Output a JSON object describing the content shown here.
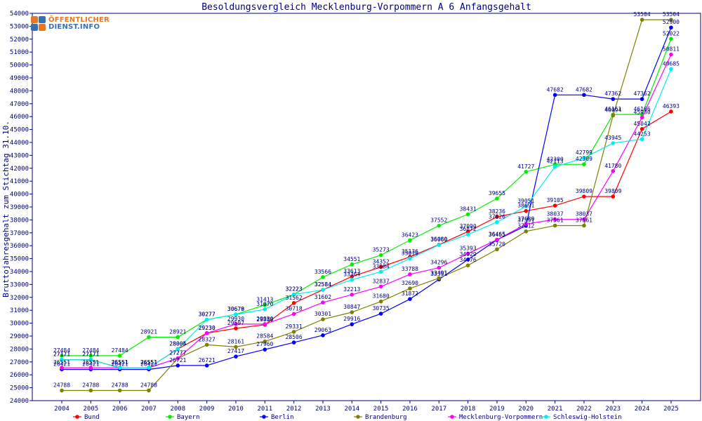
{
  "logo": {
    "line1": "ÖFFENTLICHER",
    "line2": "DIENST.INFO"
  },
  "chart_data": {
    "type": "line",
    "title": "Besoldungsvergleich Mecklenburg-Vorpommern A 6 Anfangsgehalt",
    "xlabel": "",
    "ylabel": "Bruttojahresgehalt zum Stichtag 31.10.",
    "ylim": [
      24000,
      54000
    ],
    "ytick_step": 1000,
    "grid": false,
    "legend_position": "bottom",
    "categories": [
      "2004",
      "2005",
      "2006",
      "2007",
      "2008",
      "2009",
      "2010",
      "2011",
      "2012",
      "2013",
      "2014",
      "2015",
      "2016",
      "2017",
      "2018",
      "2019",
      "2020",
      "2021",
      "2022",
      "2023",
      "2024",
      "2025"
    ],
    "series": [
      {
        "name": "Bund",
        "color": "#ff0000",
        "values": [
          27171,
          27171,
          26551,
          26551,
          28004,
          29230,
          29597,
          29880,
          31562,
          32584,
          33613,
          34352,
          35136,
          36080,
          37090,
          38236,
          38691,
          39105,
          39809,
          39809,
          45042,
          46393
        ]
      },
      {
        "name": "Bayern",
        "color": "#00ee00",
        "values": [
          27484,
          27484,
          27484,
          28921,
          28921,
          30277,
          30679,
          31413,
          32223,
          33566,
          34551,
          35273,
          36423,
          37552,
          38431,
          39655,
          41727,
          42300,
          42309,
          46161,
          46166,
          52022
        ]
      },
      {
        "name": "Berlin",
        "color": "#0000ff",
        "values": [
          26421,
          26421,
          26421,
          26421,
          26721,
          26721,
          27417,
          27960,
          28506,
          29063,
          29916,
          30735,
          31872,
          33391,
          34929,
          36455,
          37551,
          47682,
          47682,
          47362,
          47362,
          52900
        ]
      },
      {
        "name": "Brandenburg",
        "color": "#808000",
        "values": [
          24788,
          24788,
          24788,
          24788,
          27277,
          28327,
          28161,
          28584,
          29331,
          30301,
          30847,
          31680,
          32690,
          33491,
          34476,
          35720,
          37112,
          37561,
          37561,
          46094,
          53504,
          53504
        ]
      },
      {
        "name": "Mecklenburg-Vorpommern",
        "color": "#ff00ff",
        "values": [
          26551,
          26551,
          26551,
          26551,
          27277,
          29230,
          29930,
          29930,
          30718,
          31602,
          32213,
          32837,
          33788,
          34296,
          35393,
          36465,
          37680,
          38037,
          38037,
          41780,
          45930,
          50811
        ]
      },
      {
        "name": "Schleswig-Holstein",
        "color": "#00eeee",
        "values": [
          27171,
          27171,
          26551,
          26551,
          28005,
          30277,
          30678,
          31070,
          32223,
          32584,
          33364,
          33984,
          35010,
          36060,
          36872,
          37826,
          39051,
          42113,
          42799,
          43945,
          44253,
          49685
        ]
      }
    ]
  }
}
